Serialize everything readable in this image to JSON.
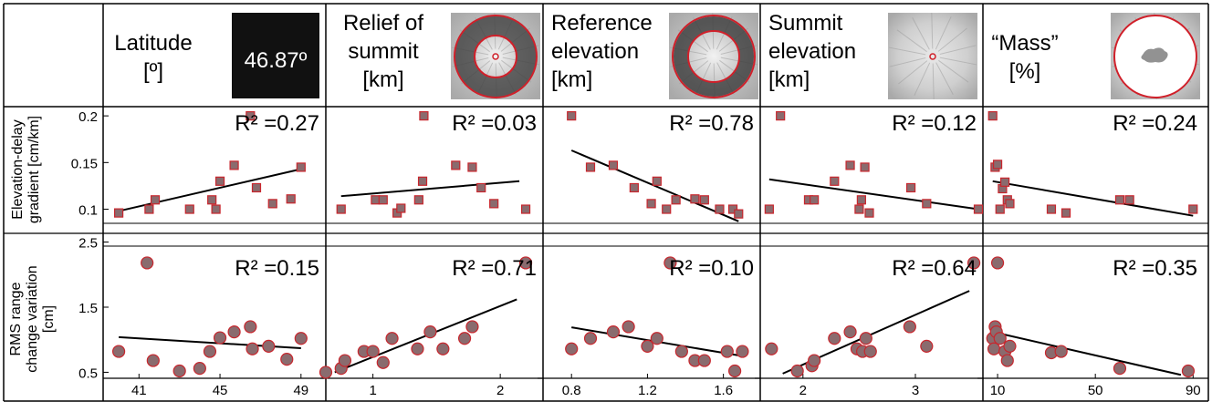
{
  "header": {
    "columns": [
      {
        "title_lines": [
          "Latitude",
          "[º]"
        ],
        "inset_text": "46.87º"
      },
      {
        "title_lines": [
          "Relief of",
          "summit",
          "[km]"
        ]
      },
      {
        "title_lines": [
          "Reference",
          "elevation",
          "[km]"
        ]
      },
      {
        "title_lines": [
          "Summit",
          "elevation",
          "[km]"
        ]
      },
      {
        "title_lines": [
          "“Mass”",
          "[%]"
        ]
      }
    ]
  },
  "row_labels": {
    "top": [
      "Elevation-delay",
      "gradient [cm/km]"
    ],
    "bottom": [
      "RMS range",
      "change variation",
      "[cm]"
    ]
  },
  "chart_data": [
    {
      "type": "scatter",
      "row": "top",
      "col": 0,
      "r2_text": "R² =0.27",
      "ylim": [
        0.08,
        0.205
      ],
      "xlim": [
        39.5,
        50
      ],
      "yticks": [
        0.1,
        0.15,
        0.2
      ],
      "ytick_labels": [
        "0.1",
        "0.15",
        "0.2"
      ],
      "x": [
        40.0,
        41.5,
        41.8,
        43.5,
        44.6,
        44.8,
        45.0,
        45.7,
        46.5,
        46.8,
        47.6,
        48.5,
        49.0
      ],
      "y": [
        0.096,
        0.1,
        0.11,
        0.1,
        0.11,
        0.1,
        0.13,
        0.147,
        0.2,
        0.123,
        0.106,
        0.111,
        0.145
      ],
      "fit": [
        [
          40.0,
          0.098
        ],
        [
          49.0,
          0.143
        ]
      ]
    },
    {
      "type": "scatter",
      "row": "top",
      "col": 1,
      "r2_text": "R² =0.03",
      "ylim": [
        0.08,
        0.205
      ],
      "xlim": [
        0.63,
        2.3
      ],
      "x": [
        0.75,
        1.02,
        1.08,
        1.19,
        1.22,
        1.36,
        1.39,
        1.4,
        1.65,
        1.78,
        1.85,
        1.95,
        2.2
      ],
      "y": [
        0.1,
        0.11,
        0.11,
        0.096,
        0.101,
        0.11,
        0.13,
        0.2,
        0.147,
        0.145,
        0.123,
        0.106,
        0.1
      ],
      "fit": [
        [
          0.75,
          0.114
        ],
        [
          2.15,
          0.13
        ]
      ]
    },
    {
      "type": "scatter",
      "row": "top",
      "col": 2,
      "r2_text": "R² =0.78",
      "ylim": [
        0.08,
        0.205
      ],
      "xlim": [
        0.65,
        1.77
      ],
      "x": [
        0.8,
        0.9,
        1.02,
        1.13,
        1.22,
        1.25,
        1.3,
        1.35,
        1.45,
        1.5,
        1.58,
        1.65,
        1.68
      ],
      "y": [
        0.2,
        0.145,
        0.147,
        0.123,
        0.106,
        0.13,
        0.1,
        0.11,
        0.111,
        0.11,
        0.1,
        0.1,
        0.095
      ],
      "fit": [
        [
          0.8,
          0.163
        ],
        [
          1.68,
          0.087
        ]
      ]
    },
    {
      "type": "scatter",
      "row": "top",
      "col": 3,
      "r2_text": "R² =0.12",
      "ylim": [
        0.08,
        0.205
      ],
      "xlim": [
        1.62,
        3.56
      ],
      "x": [
        1.7,
        1.8,
        2.05,
        2.1,
        2.28,
        2.42,
        2.5,
        2.52,
        2.55,
        2.59,
        2.96,
        3.1,
        3.56
      ],
      "y": [
        0.1,
        0.2,
        0.11,
        0.11,
        0.13,
        0.147,
        0.1,
        0.11,
        0.145,
        0.096,
        0.123,
        0.106,
        0.1
      ],
      "fit": [
        [
          1.7,
          0.132
        ],
        [
          3.56,
          0.1
        ]
      ]
    },
    {
      "type": "scatter",
      "row": "top",
      "col": 4,
      "r2_text": "R² =0.24",
      "ylim": [
        0.08,
        0.205
      ],
      "xlim": [
        4,
        94
      ],
      "x": [
        8,
        9,
        10,
        11,
        12,
        13,
        14,
        15,
        32,
        38,
        60,
        64,
        90
      ],
      "y": [
        0.2,
        0.145,
        0.148,
        0.1,
        0.122,
        0.129,
        0.11,
        0.106,
        0.1,
        0.096,
        0.11,
        0.11,
        0.1
      ],
      "fit": [
        [
          8,
          0.13
        ],
        [
          90,
          0.093
        ]
      ]
    },
    {
      "type": "scatter",
      "row": "bottom",
      "col": 0,
      "r2_text": "R² =0.15",
      "ylim": [
        0.45,
        2.55
      ],
      "xlim": [
        39.5,
        50
      ],
      "xticks": [
        41,
        45,
        49
      ],
      "xtick_labels": [
        "41",
        "45",
        "49"
      ],
      "yticks": [
        0.5,
        1.5,
        2.5
      ],
      "ytick_labels": [
        "0.5",
        "1.5",
        "2.5"
      ],
      "x": [
        40.0,
        41.4,
        41.7,
        43.0,
        44.0,
        44.5,
        45.0,
        45.7,
        46.5,
        46.6,
        47.4,
        48.3,
        49.0
      ],
      "y": [
        0.82,
        2.18,
        0.68,
        0.52,
        0.56,
        0.82,
        1.03,
        1.12,
        1.2,
        0.86,
        0.9,
        0.7,
        1.02
      ],
      "fit": [
        [
          40.0,
          1.04
        ],
        [
          49.0,
          0.87
        ]
      ]
    },
    {
      "type": "scatter",
      "row": "bottom",
      "col": 1,
      "r2_text": "R² =0.71",
      "ylim": [
        0.45,
        2.55
      ],
      "xlim": [
        0.63,
        2.3
      ],
      "xticks": [
        1,
        2
      ],
      "xtick_labels": [
        "1",
        "2"
      ],
      "x": [
        0.63,
        0.75,
        0.78,
        0.93,
        1.0,
        1.08,
        1.15,
        1.35,
        1.45,
        1.55,
        1.72,
        1.78,
        2.2
      ],
      "y": [
        0.5,
        0.56,
        0.68,
        0.82,
        0.82,
        0.65,
        1.02,
        0.86,
        1.12,
        0.86,
        1.02,
        1.2,
        2.18
      ],
      "fit": [
        [
          0.7,
          0.5
        ],
        [
          2.13,
          1.62
        ]
      ]
    },
    {
      "type": "scatter",
      "row": "bottom",
      "col": 2,
      "r2_text": "R² =0.10",
      "ylim": [
        0.45,
        2.55
      ],
      "xlim": [
        0.65,
        1.77
      ],
      "xticks": [
        0.8,
        1.2,
        1.6
      ],
      "xtick_labels": [
        "0.8",
        "1.2",
        "1.6"
      ],
      "x": [
        0.8,
        0.9,
        1.02,
        1.1,
        1.2,
        1.25,
        1.32,
        1.38,
        1.45,
        1.5,
        1.62,
        1.66,
        1.7
      ],
      "y": [
        0.86,
        1.02,
        1.12,
        1.2,
        0.9,
        1.02,
        2.18,
        0.82,
        0.68,
        0.68,
        0.82,
        0.52,
        0.82
      ],
      "fit": [
        [
          0.8,
          1.19
        ],
        [
          1.68,
          0.76
        ]
      ]
    },
    {
      "type": "scatter",
      "row": "bottom",
      "col": 3,
      "r2_text": "R² =0.64",
      "ylim": [
        0.45,
        2.55
      ],
      "xlim": [
        1.62,
        3.56
      ],
      "xticks": [
        2,
        3
      ],
      "xtick_labels": [
        "2",
        "3"
      ],
      "x": [
        1.72,
        1.95,
        2.08,
        2.1,
        2.28,
        2.42,
        2.48,
        2.53,
        2.56,
        2.6,
        2.95,
        3.1,
        3.52
      ],
      "y": [
        0.86,
        0.52,
        0.6,
        0.68,
        1.02,
        1.12,
        0.86,
        0.82,
        1.02,
        0.82,
        1.2,
        0.9,
        2.18
      ],
      "fit": [
        [
          1.82,
          0.48
        ],
        [
          3.48,
          1.75
        ]
      ]
    },
    {
      "type": "scatter",
      "row": "bottom",
      "col": 4,
      "r2_text": "R² =0.35",
      "ylim": [
        0.45,
        2.55
      ],
      "xlim": [
        4,
        94
      ],
      "xticks": [
        10,
        50,
        90
      ],
      "xtick_labels": [
        "10",
        "50",
        "90"
      ],
      "x": [
        8,
        8.5,
        9,
        9.5,
        10,
        11,
        13,
        14,
        15,
        32,
        36,
        60,
        88
      ],
      "y": [
        1.02,
        0.86,
        1.2,
        1.12,
        2.18,
        1.02,
        0.82,
        0.68,
        0.9,
        0.8,
        0.82,
        0.56,
        0.52
      ],
      "fit": [
        [
          8,
          1.12
        ],
        [
          85,
          0.46
        ]
      ]
    }
  ],
  "colors": {
    "marker_fill": "#8a6b6e",
    "marker_stroke": "#c8262d",
    "fit_line": "#000000",
    "inset_circle": "#d0202a",
    "inset_black": "#111111"
  }
}
